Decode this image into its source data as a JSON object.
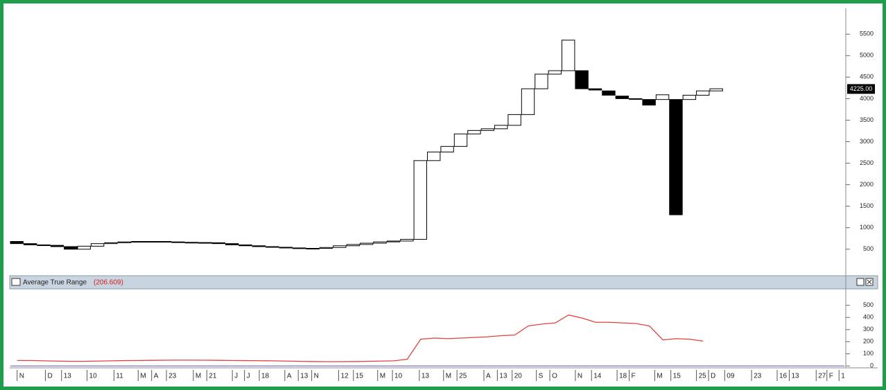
{
  "chart_data": [
    {
      "type": "candlestick",
      "x": [
        0,
        1,
        2,
        3,
        4,
        5,
        6,
        7,
        8,
        9,
        10,
        11,
        12,
        13,
        14,
        15,
        16,
        17,
        18,
        19,
        20,
        21,
        22,
        23,
        24,
        25,
        26,
        27,
        28,
        29,
        30,
        31,
        32,
        33,
        34,
        35,
        36,
        37,
        38,
        39,
        40,
        41,
        42,
        43,
        44,
        45,
        46,
        47,
        48,
        49,
        50,
        51,
        52
      ],
      "open": [
        680,
        630,
        600,
        590,
        560,
        500,
        570,
        630,
        650,
        670,
        680,
        680,
        670,
        660,
        655,
        650,
        630,
        600,
        580,
        560,
        545,
        530,
        520,
        520,
        540,
        580,
        610,
        640,
        670,
        690,
        730,
        2560,
        2760,
        2890,
        3180,
        3260,
        3300,
        3380,
        3630,
        4230,
        4570,
        4650,
        4650,
        4230,
        4180,
        4060,
        4000,
        3980,
        3980,
        3980,
        3980,
        4080,
        4180
      ],
      "close": [
        630,
        600,
        590,
        560,
        500,
        570,
        630,
        650,
        670,
        680,
        680,
        670,
        660,
        655,
        650,
        630,
        600,
        580,
        560,
        545,
        530,
        520,
        520,
        540,
        580,
        610,
        640,
        670,
        690,
        730,
        2560,
        2760,
        2890,
        3180,
        3260,
        3300,
        3380,
        3630,
        4230,
        4570,
        4650,
        5360,
        4230,
        4200,
        4080,
        4000,
        3990,
        3850,
        4090,
        1300,
        4080,
        4180,
        4230
      ],
      "up_color": "#ffffff",
      "down_color": "#000000",
      "xlim": [
        0,
        62
      ],
      "xticks": [
        {
          "value": 0.5,
          "label": "N"
        },
        {
          "value": 2.6,
          "label": "D"
        },
        {
          "value": 3.8,
          "label": "13"
        },
        {
          "value": 5.7,
          "label": "10"
        },
        {
          "value": 7.7,
          "label": "11"
        },
        {
          "value": 9.5,
          "label": "M"
        },
        {
          "value": 10.5,
          "label": "A"
        },
        {
          "value": 11.6,
          "label": "23"
        },
        {
          "value": 13.6,
          "label": "M"
        },
        {
          "value": 14.6,
          "label": "21"
        },
        {
          "value": 16.5,
          "label": "J"
        },
        {
          "value": 17.4,
          "label": "J"
        },
        {
          "value": 18.5,
          "label": "18"
        },
        {
          "value": 20.4,
          "label": "A"
        },
        {
          "value": 21.4,
          "label": "13"
        },
        {
          "value": 22.4,
          "label": "N"
        },
        {
          "value": 24.4,
          "label": "12"
        },
        {
          "value": 25.5,
          "label": "15"
        },
        {
          "value": 27.3,
          "label": "M"
        },
        {
          "value": 28.4,
          "label": "10"
        },
        {
          "value": 30.4,
          "label": "13"
        },
        {
          "value": 32.2,
          "label": "M"
        },
        {
          "value": 33.2,
          "label": "25"
        },
        {
          "value": 35.2,
          "label": "A"
        },
        {
          "value": 36.2,
          "label": "13"
        },
        {
          "value": 37.3,
          "label": "20"
        },
        {
          "value": 39.1,
          "label": "S"
        },
        {
          "value": 40.1,
          "label": "O"
        },
        {
          "value": 42.0,
          "label": "N"
        },
        {
          "value": 43.2,
          "label": "14"
        },
        {
          "value": 45.1,
          "label": "18"
        },
        {
          "value": 46.0,
          "label": "F"
        },
        {
          "value": 47.9,
          "label": "M"
        },
        {
          "value": 49.1,
          "label": "15"
        },
        {
          "value": 51.0,
          "label": "25"
        },
        {
          "value": 51.9,
          "label": "D"
        },
        {
          "value": 53.1,
          "label": "09"
        },
        {
          "value": 55.1,
          "label": "23"
        },
        {
          "value": 57.0,
          "label": "16"
        },
        {
          "value": 57.9,
          "label": "13"
        },
        {
          "value": 59.9,
          "label": "27"
        },
        {
          "value": 60.7,
          "label": "F"
        },
        {
          "value": 61.6,
          "label": "1"
        }
      ],
      "ylim": [
        -100,
        6100
      ],
      "yticks": [
        500,
        1000,
        1500,
        2000,
        2500,
        3000,
        3500,
        4000,
        4500,
        5000,
        5500
      ],
      "last_price": {
        "value": 4225,
        "label": "4225.00"
      }
    },
    {
      "type": "line",
      "title": "Average True Range",
      "current": {
        "value": 206.609,
        "label": "(206.609)"
      },
      "x": [
        0,
        1,
        2,
        3,
        4,
        5,
        6,
        7,
        8,
        9,
        10,
        11,
        12,
        13,
        14,
        15,
        16,
        17,
        18,
        19,
        20,
        21,
        22,
        23,
        24,
        25,
        26,
        27,
        28,
        29,
        30,
        31,
        32,
        33,
        34,
        35,
        36,
        37,
        38,
        39,
        40,
        41,
        42,
        43,
        44,
        45,
        46,
        47,
        48,
        49,
        50,
        51,
        52
      ],
      "series": [
        {
          "color": "#e0403a",
          "values": [
            45,
            45,
            42,
            40,
            38,
            38,
            40,
            42,
            44,
            45,
            46,
            47,
            48,
            48,
            47,
            46,
            45,
            44,
            43,
            42,
            40,
            38,
            36,
            35,
            35,
            36,
            38,
            40,
            42,
            55,
            220,
            230,
            225,
            230,
            235,
            240,
            250,
            255,
            330,
            345,
            355,
            420,
            395,
            360,
            360,
            355,
            350,
            330,
            215,
            225,
            220,
            205,
            null
          ]
        }
      ],
      "zero_color": "#5050c0",
      "xlim": [
        0,
        62
      ],
      "ylim": [
        -10,
        630
      ],
      "yticks": [
        0,
        100,
        200,
        300,
        400,
        500
      ]
    }
  ]
}
